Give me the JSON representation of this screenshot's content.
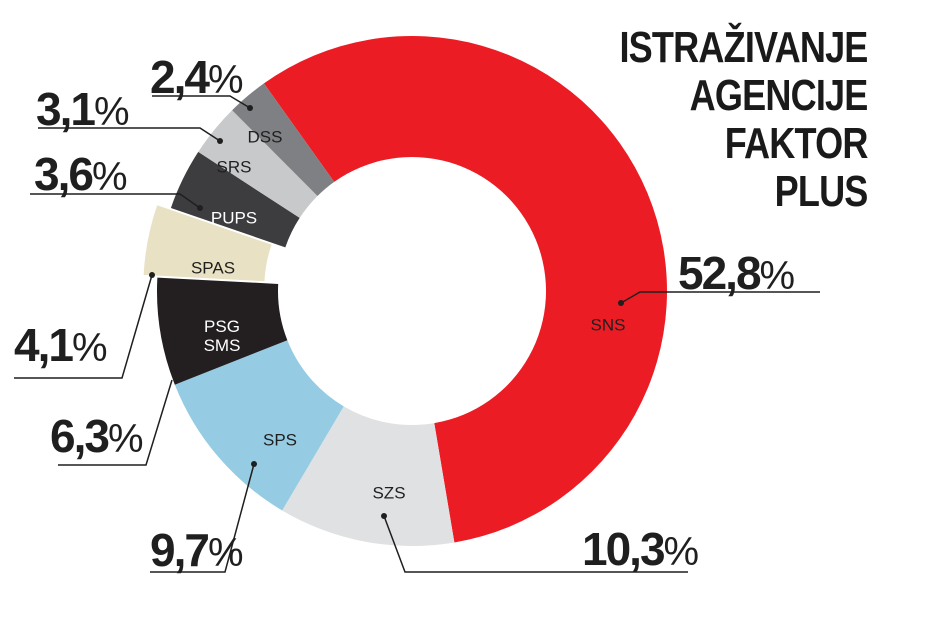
{
  "title": {
    "lines": [
      "ISTRAŽIVANJE",
      "AGENCIJE",
      "FAKTOR",
      "PLUS"
    ]
  },
  "chart_data": {
    "type": "pie",
    "subtype": "donut",
    "title": "ISTRAŽIVANJE AGENCIJE FAKTOR PLUS",
    "categories": [
      "SNS",
      "SZS",
      "SPS",
      "PSG SMS",
      "SPAS",
      "PUPS",
      "SRS",
      "DSS"
    ],
    "values": [
      52.8,
      10.3,
      9.7,
      6.3,
      4.1,
      3.6,
      3.1,
      2.4
    ],
    "value_labels": [
      "52,8%",
      "10,3%",
      "9,7%",
      "6,3%",
      "4,1%",
      "3,6%",
      "3,1%",
      "2,4%"
    ],
    "colors": [
      "#ec1c24",
      "#e0e1e3",
      "#95cce3",
      "#231f20",
      "#e8e1c3",
      "#3d3d3f",
      "#c8c9cb",
      "#7f8083"
    ],
    "exploded": [
      "SPAS"
    ],
    "legend": "none"
  },
  "segments": [
    {
      "label": "SNS",
      "lines": [
        "SNS"
      ],
      "pct_num": "52,8",
      "pct_sign": "%",
      "color": "#ec1c24",
      "text_color": "#1f1f1f"
    },
    {
      "label": "SZS",
      "lines": [
        "SZS"
      ],
      "pct_num": "10,3",
      "pct_sign": "%",
      "color": "#e0e1e3",
      "text_color": "#1f1f1f"
    },
    {
      "label": "SPS",
      "lines": [
        "SPS"
      ],
      "pct_num": "9,7",
      "pct_sign": "%",
      "color": "#95cce3",
      "text_color": "#1f1f1f"
    },
    {
      "label": "PSG SMS",
      "lines": [
        "PSG",
        "SMS"
      ],
      "pct_num": "6,3",
      "pct_sign": "%",
      "color": "#231f20",
      "text_color": "#ffffff"
    },
    {
      "label": "SPAS",
      "lines": [
        "SPAS"
      ],
      "pct_num": "4,1",
      "pct_sign": "%",
      "color": "#e8e1c3",
      "text_color": "#1f1f1f"
    },
    {
      "label": "PUPS",
      "lines": [
        "PUPS"
      ],
      "pct_num": "3,6",
      "pct_sign": "%",
      "color": "#3d3d3f",
      "text_color": "#ffffff"
    },
    {
      "label": "SRS",
      "lines": [
        "SRS"
      ],
      "pct_num": "3,1",
      "pct_sign": "%",
      "color": "#c8c9cb",
      "text_color": "#1f1f1f"
    },
    {
      "label": "DSS",
      "lines": [
        "DSS"
      ],
      "pct_num": "2,4",
      "pct_sign": "%",
      "color": "#7f8083",
      "text_color": "#1f1f1f"
    }
  ]
}
